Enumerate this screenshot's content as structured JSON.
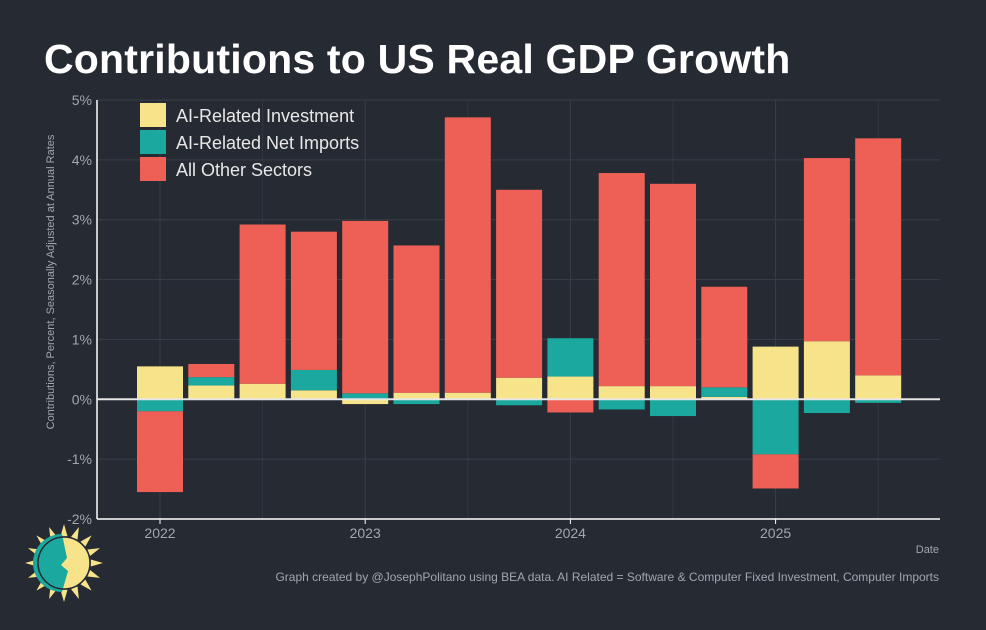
{
  "chart_data": {
    "type": "bar",
    "stacked": true,
    "title": "Contributions to US Real GDP Growth",
    "xlabel": "Date",
    "ylabel": "Contributions, Percent, Seasonally Adjusted at Annual Rates",
    "ylim": [
      -2,
      5
    ],
    "yticks": [
      "-2%",
      "-1%",
      "0%",
      "1%",
      "2%",
      "3%",
      "4%",
      "5%"
    ],
    "ytick_values": [
      -2,
      -1,
      0,
      1,
      2,
      3,
      4,
      5
    ],
    "xticks": [
      {
        "label": "2022",
        "bar_index": 0
      },
      {
        "label": "2023",
        "bar_index": 4
      },
      {
        "label": "2024",
        "bar_index": 8
      },
      {
        "label": "2025",
        "bar_index": 12
      }
    ],
    "legend_position": "top-left",
    "grid": true,
    "bar_count": 15,
    "series": [
      {
        "name": "AI-Related Investment",
        "color": "#f7e38a",
        "values": [
          0.55,
          0.23,
          0.26,
          0.15,
          -0.08,
          0.11,
          0.11,
          0.36,
          0.38,
          0.22,
          0.22,
          0.04,
          0.88,
          0.97,
          0.4
        ]
      },
      {
        "name": "AI-Related Net Imports",
        "color": "#1ba89e",
        "values": [
          -0.2,
          0.14,
          0.0,
          0.34,
          0.1,
          -0.08,
          0.0,
          -0.1,
          0.64,
          -0.17,
          -0.28,
          0.16,
          -0.92,
          -0.23,
          -0.06
        ]
      },
      {
        "name": "All Other Sectors",
        "color": "#ee6055",
        "values": [
          -1.35,
          0.22,
          2.66,
          2.31,
          2.88,
          2.46,
          4.6,
          3.14,
          -0.22,
          3.56,
          3.38,
          1.68,
          -0.57,
          3.06,
          3.96
        ]
      }
    ],
    "caption": "Graph created by @JosephPolitano using BEA data. AI Related = Software & Computer Fixed Investment, Computer Imports"
  },
  "colors": {
    "background": "#262a33",
    "grid": "#3a3e47",
    "axis": "#ffffff",
    "zero_line": "#e6e6e6"
  },
  "logo": {
    "icon": "sun-icon"
  }
}
